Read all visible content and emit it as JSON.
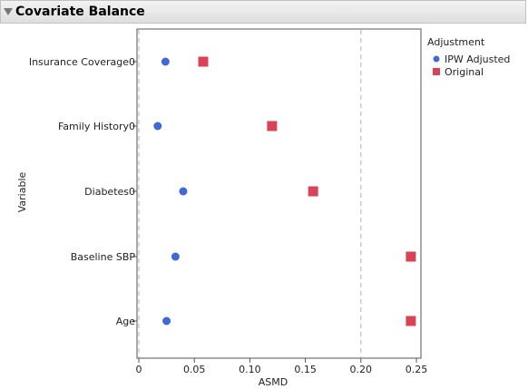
{
  "panel": {
    "title": "Covariate Balance"
  },
  "chart_data": {
    "type": "scatter",
    "xlabel": "ASMD",
    "ylabel": "Variable",
    "xlim": [
      0,
      0.25
    ],
    "x_ticks": [
      "0",
      "0.05",
      "0.10",
      "0.15",
      "0.20",
      "0.25"
    ],
    "x_tick_values": [
      0,
      0.05,
      0.1,
      0.15,
      0.2,
      0.25
    ],
    "reference_lines_x": [
      0,
      0.2
    ],
    "categories": [
      "Insurance Coverage0",
      "Family History0",
      "Diabetes0",
      "Baseline SBP",
      "Age"
    ],
    "legend": {
      "title": "Adjustment",
      "placement": "right"
    },
    "series": [
      {
        "name": "IPW Adjusted",
        "marker": "circle",
        "color": "#4169d6",
        "values": [
          0.024,
          0.017,
          0.04,
          0.033,
          0.025
        ]
      },
      {
        "name": "Original",
        "marker": "square",
        "color": "#d84356",
        "values": [
          0.058,
          0.12,
          0.157,
          0.245,
          0.245
        ]
      }
    ]
  }
}
